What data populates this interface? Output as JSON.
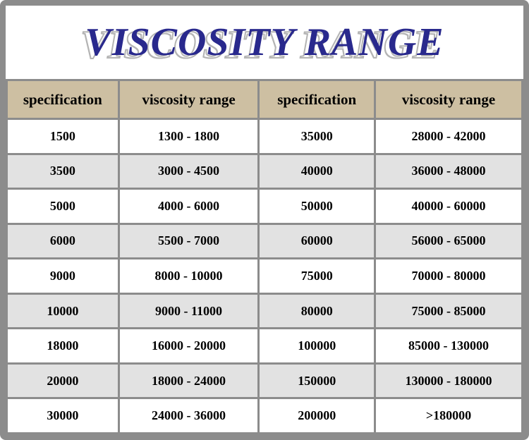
{
  "chart_data": {
    "type": "table",
    "title": "VISCOSITY RANGE",
    "columns": [
      "specification",
      "viscosity range",
      "specification",
      "viscosity range"
    ],
    "rows": [
      [
        "1500",
        "1300 - 1800",
        "35000",
        "28000 - 42000"
      ],
      [
        "3500",
        "3000 - 4500",
        "40000",
        "36000 - 48000"
      ],
      [
        "5000",
        "4000 - 6000",
        "50000",
        "40000 - 60000"
      ],
      [
        "6000",
        "5500 - 7000",
        "60000",
        "56000 - 65000"
      ],
      [
        "9000",
        "8000 - 10000",
        "75000",
        "70000 - 80000"
      ],
      [
        "10000",
        "9000 - 11000",
        "80000",
        "75000 - 85000"
      ],
      [
        "18000",
        "16000 - 20000",
        "100000",
        "85000 - 130000"
      ],
      [
        "20000",
        "18000 - 24000",
        "150000",
        "130000 - 180000"
      ],
      [
        "30000",
        "24000 - 36000",
        "200000",
        ">180000"
      ]
    ],
    "layout": {
      "legend": "none",
      "grid": "full cell borders",
      "zebra_striping": "white / light gray alternating data rows"
    }
  },
  "colors": {
    "outer_border": "#8c8c8c",
    "cell_border": "#8c8c8c",
    "header_bg": "#cdbfa2",
    "row_bg_even": "#ffffff",
    "row_bg_odd": "#e2e2e2",
    "title_text": "#29298d",
    "title_shadow": "#b4b4b4",
    "cell_text": "#000000"
  }
}
